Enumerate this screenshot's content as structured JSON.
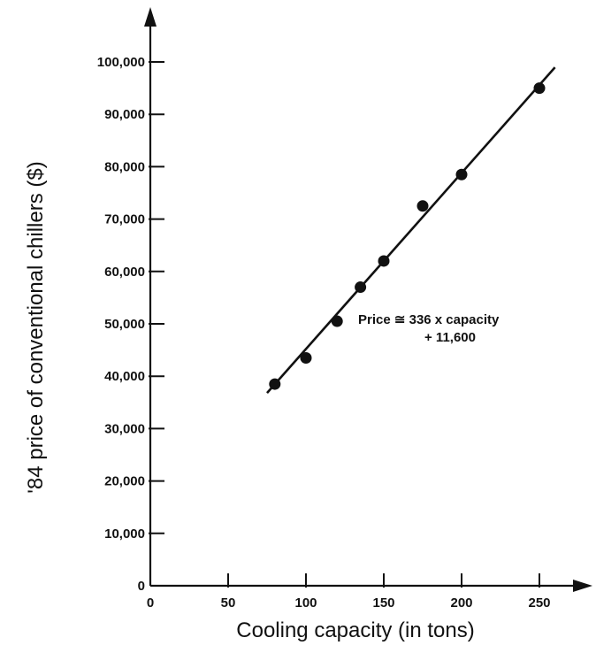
{
  "chart_data": {
    "type": "scatter",
    "xlabel": "Cooling capacity (in tons)",
    "ylabel": "'84 price of conventional chillers ($)",
    "xlim": [
      0,
      275
    ],
    "ylim": [
      0,
      110000
    ],
    "x_ticks": [
      0,
      50,
      100,
      150,
      200,
      250
    ],
    "x_tick_labels": [
      "0",
      "50",
      "100",
      "150",
      "200",
      "250"
    ],
    "y_ticks": [
      0,
      10000,
      20000,
      30000,
      40000,
      50000,
      60000,
      70000,
      80000,
      90000,
      100000
    ],
    "y_tick_labels": [
      "0",
      "10,000",
      "20,000",
      "30,000",
      "40,000",
      "50,000",
      "60,000",
      "70,000",
      "80,000",
      "90,000",
      "100,000"
    ],
    "points": [
      {
        "x": 80,
        "y": 38500
      },
      {
        "x": 100,
        "y": 43500
      },
      {
        "x": 120,
        "y": 50500
      },
      {
        "x": 135,
        "y": 57000
      },
      {
        "x": 150,
        "y": 62000
      },
      {
        "x": 175,
        "y": 72500
      },
      {
        "x": 200,
        "y": 78500
      },
      {
        "x": 250,
        "y": 95000
      }
    ],
    "fit_line": {
      "slope": 336,
      "intercept": 11600,
      "x_range": [
        75,
        260
      ]
    },
    "annotation": [
      "Price ≅ 336 x capacity",
      "+ 11,600"
    ],
    "grid": false,
    "legend": "none"
  }
}
